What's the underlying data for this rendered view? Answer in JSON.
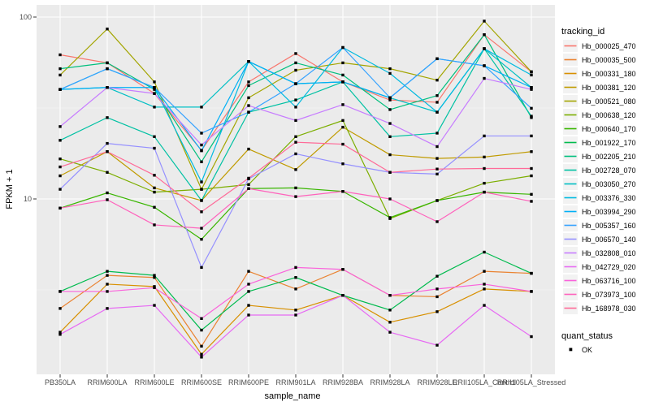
{
  "figure": {
    "xlabel": "sample_name",
    "ylabel": "FPKM + 1",
    "legend_tracking_title": "tracking_id",
    "legend_quant_title": "quant_status",
    "legend_quant_items": [
      "OK"
    ]
  },
  "style": {
    "panel_bg": "#EBEBEB",
    "grid_major": "#FFFFFF",
    "grid_minor": "#F5F5F5",
    "tick_mark_color": "#333333",
    "tick_label_color": "#4D4D4D",
    "marker_color": "#000000",
    "legend_key_bg": "#F2F2F2"
  },
  "chart_data": {
    "type": "line",
    "title": "",
    "xlabel": "sample_name",
    "ylabel": "FPKM + 1",
    "y_scale": "log10",
    "y_major_ticks": [
      100,
      10
    ],
    "y_minor_gridlines": [
      31.623,
      3.1623
    ],
    "ylim": [
      1.09,
      117
    ],
    "grid": true,
    "legend_position": "right",
    "marker": "filled-square",
    "categories": [
      "PB350LA",
      "RRIM600LA",
      "RRIM600LE",
      "RRIM600SE",
      "RRIM600PE",
      "RRIM901LA",
      "RRIM928BA",
      "RRIM928LA",
      "RRIM928LE",
      "RRII105LA_Control",
      "RRII105LA_Stressed"
    ],
    "series": [
      {
        "name": "Hb_000025_470",
        "color": "#F8766D",
        "values": [
          62,
          56,
          38,
          18.5,
          44,
          63,
          44,
          35,
          34,
          80,
          50
        ]
      },
      {
        "name": "Hb_000035_500",
        "color": "#EA8331",
        "values": [
          2.5,
          3.8,
          3.7,
          1.55,
          4.0,
          3.2,
          4.1,
          2.95,
          2.9,
          4.0,
          3.9
        ]
      },
      {
        "name": "Hb_000331_180",
        "color": "#D89000",
        "values": [
          1.85,
          3.4,
          3.3,
          1.4,
          2.6,
          2.45,
          2.95,
          2.1,
          2.4,
          3.2,
          3.1
        ]
      },
      {
        "name": "Hb_000381_120",
        "color": "#C09B00",
        "values": [
          13.4,
          18.2,
          11.5,
          9.8,
          18.8,
          14.5,
          24.8,
          17.5,
          16.7,
          17.0,
          18.2
        ]
      },
      {
        "name": "Hb_000521_080",
        "color": "#A3A500",
        "values": [
          48,
          86,
          44,
          11.3,
          36,
          51,
          56,
          52,
          45,
          95,
          50
        ]
      },
      {
        "name": "Hb_000638_120",
        "color": "#7CAE00",
        "values": [
          16.6,
          14.0,
          10.9,
          11.3,
          12.0,
          22.0,
          27.0,
          7.8,
          9.8,
          12.2,
          13.4
        ]
      },
      {
        "name": "Hb_000640_170",
        "color": "#39B600",
        "values": [
          8.9,
          10.8,
          9.0,
          6.0,
          11.4,
          11.5,
          11.0,
          7.9,
          9.8,
          10.9,
          10.6
        ]
      },
      {
        "name": "Hb_001922_170",
        "color": "#00BB4E",
        "values": [
          3.1,
          4.0,
          3.8,
          1.9,
          3.1,
          3.7,
          2.95,
          2.45,
          3.76,
          5.1,
          3.9
        ]
      },
      {
        "name": "Hb_002205_210",
        "color": "#00BF7D",
        "values": [
          52,
          56,
          40,
          16,
          42,
          56,
          48,
          31,
          37,
          80,
          28
        ]
      },
      {
        "name": "Hb_002728_070",
        "color": "#00C1A3",
        "values": [
          21,
          28,
          22,
          9.8,
          30,
          35,
          44,
          22,
          23,
          67,
          28.5
        ]
      },
      {
        "name": "Hb_003050_270",
        "color": "#00BFC4",
        "values": [
          40,
          41,
          32,
          32,
          57,
          43,
          44,
          36,
          30,
          67,
          41
        ]
      },
      {
        "name": "Hb_003376_330",
        "color": "#00BAE0",
        "values": [
          40,
          52,
          41,
          12.4,
          57,
          32,
          68,
          49,
          30,
          67,
          48
        ]
      },
      {
        "name": "Hb_003994_290",
        "color": "#00B0F6",
        "values": [
          40,
          41,
          41,
          18.4,
          57,
          43,
          44,
          36,
          59,
          54,
          41
        ]
      },
      {
        "name": "Hb_005357_160",
        "color": "#35A2FF",
        "values": [
          40,
          52,
          41,
          23,
          30,
          43,
          68,
          36,
          59,
          54,
          31.5
        ]
      },
      {
        "name": "Hb_006570_140",
        "color": "#9590FF",
        "values": [
          11.3,
          20.2,
          19.0,
          4.2,
          12.9,
          17.7,
          15.6,
          14.0,
          13.7,
          22.2,
          22.2
        ]
      },
      {
        "name": "Hb_032808_010",
        "color": "#C77CFF",
        "values": [
          25,
          41,
          38,
          19.8,
          32.6,
          27,
          33,
          26,
          19.4,
          46,
          40
        ]
      },
      {
        "name": "Hb_042729_020",
        "color": "#E76BF3",
        "values": [
          1.8,
          2.5,
          2.6,
          1.35,
          2.3,
          2.3,
          2.95,
          1.85,
          1.57,
          2.6,
          1.75
        ]
      },
      {
        "name": "Hb_063716_100",
        "color": "#FA62DB",
        "values": [
          3.1,
          3.1,
          3.25,
          2.2,
          3.4,
          4.2,
          4.1,
          2.95,
          3.2,
          3.4,
          3.1
        ]
      },
      {
        "name": "Hb_073973_100",
        "color": "#FF62BC",
        "values": [
          8.9,
          9.9,
          7.2,
          6.9,
          11.4,
          10.3,
          11.0,
          10.0,
          7.5,
          10.9,
          9.7
        ]
      },
      {
        "name": "Hb_168978_030",
        "color": "#FF6A98",
        "values": [
          15.0,
          18.2,
          13.5,
          8.5,
          13.0,
          20.5,
          20.0,
          14.0,
          14.6,
          14.7,
          14.7
        ]
      }
    ]
  }
}
